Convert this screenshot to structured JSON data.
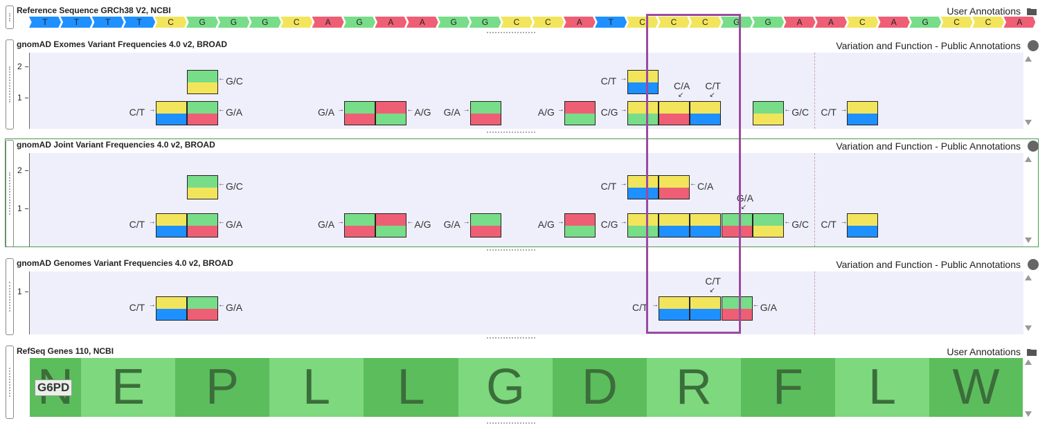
{
  "reference": {
    "title": "Reference Sequence GRCh38 V2, NCBI",
    "right_label": "User Annotations",
    "sequence": [
      "T",
      "T",
      "T",
      "T",
      "C",
      "G",
      "G",
      "G",
      "C",
      "A",
      "G",
      "A",
      "A",
      "G",
      "G",
      "C",
      "C",
      "A",
      "T",
      "C",
      "C",
      "C",
      "G",
      "G",
      "A",
      "A",
      "C",
      "A",
      "G",
      "C",
      "C",
      "A"
    ],
    "colors": {
      "T": "#1e90ff",
      "C": "#f2e55c",
      "G": "#77dd88",
      "A": "#ee5f75"
    }
  },
  "tracks": [
    {
      "title": "gnomAD Exomes Variant Frequencies 4.0 v2, BROAD",
      "right_label": "Variation and Function - Public Annotations",
      "yticks": [
        "2",
        "1"
      ],
      "variants": [
        {
          "col": 4,
          "row": 1,
          "top": "C",
          "bot": "T",
          "label": "C/T",
          "side": "left"
        },
        {
          "col": 5,
          "row": 1,
          "top": "G",
          "bot": "A",
          "label": "G/A",
          "side": "right"
        },
        {
          "col": 5,
          "row": 2,
          "top": "G",
          "bot": "C",
          "label": "G/C",
          "side": "right"
        },
        {
          "col": 10,
          "row": 1,
          "top": "G",
          "bot": "A",
          "label": "G/A",
          "side": "left"
        },
        {
          "col": 11,
          "row": 1,
          "top": "A",
          "bot": "G",
          "label": "A/G",
          "side": "right"
        },
        {
          "col": 14,
          "row": 1,
          "top": "G",
          "bot": "A",
          "label": "G/A",
          "side": "left"
        },
        {
          "col": 17,
          "row": 1,
          "top": "A",
          "bot": "G",
          "label": "A/G",
          "side": "left"
        },
        {
          "col": 19,
          "row": 1,
          "top": "C",
          "bot": "G",
          "label": "C/G",
          "side": "left"
        },
        {
          "col": 19,
          "row": 2,
          "top": "C",
          "bot": "T",
          "label": "C/T",
          "side": "left"
        },
        {
          "col": 20,
          "row": 1,
          "top": "C",
          "bot": "A",
          "label": "C/A",
          "side": "above"
        },
        {
          "col": 21,
          "row": 1,
          "top": "C",
          "bot": "T",
          "label": "C/T",
          "side": "above"
        },
        {
          "col": 23,
          "row": 1,
          "top": "G",
          "bot": "C",
          "label": "G/C",
          "side": "right"
        },
        {
          "col": 26,
          "row": 1,
          "top": "C",
          "bot": "T",
          "label": "C/T",
          "side": "left"
        }
      ]
    },
    {
      "title": "gnomAD Joint Variant Frequencies 4.0 v2, BROAD",
      "right_label": "Variation and Function - Public Annotations",
      "yticks": [
        "2",
        "1"
      ],
      "variants": [
        {
          "col": 4,
          "row": 1,
          "top": "C",
          "bot": "T",
          "label": "C/T",
          "side": "left"
        },
        {
          "col": 5,
          "row": 1,
          "top": "G",
          "bot": "A",
          "label": "G/A",
          "side": "right"
        },
        {
          "col": 5,
          "row": 2,
          "top": "G",
          "bot": "C",
          "label": "G/C",
          "side": "right"
        },
        {
          "col": 10,
          "row": 1,
          "top": "G",
          "bot": "A",
          "label": "G/A",
          "side": "left"
        },
        {
          "col": 11,
          "row": 1,
          "top": "A",
          "bot": "G",
          "label": "A/G",
          "side": "right"
        },
        {
          "col": 14,
          "row": 1,
          "top": "G",
          "bot": "A",
          "label": "G/A",
          "side": "left"
        },
        {
          "col": 17,
          "row": 1,
          "top": "A",
          "bot": "G",
          "label": "A/G",
          "side": "left"
        },
        {
          "col": 19,
          "row": 1,
          "top": "C",
          "bot": "G",
          "label": "C/G",
          "side": "left"
        },
        {
          "col": 19,
          "row": 2,
          "top": "C",
          "bot": "T",
          "label": "C/T",
          "side": "left"
        },
        {
          "col": 20,
          "row": 1,
          "top": "C",
          "bot": "T",
          "label": "",
          "side": "none"
        },
        {
          "col": 20,
          "row": 2,
          "top": "C",
          "bot": "A",
          "label": "C/A",
          "side": "right"
        },
        {
          "col": 21,
          "row": 1,
          "top": "C",
          "bot": "T",
          "label": "",
          "side": "none"
        },
        {
          "col": 22,
          "row": 1,
          "top": "G",
          "bot": "A",
          "label": "G/A",
          "side": "above"
        },
        {
          "col": 23,
          "row": 1,
          "top": "G",
          "bot": "C",
          "label": "G/C",
          "side": "right"
        },
        {
          "col": 26,
          "row": 1,
          "top": "C",
          "bot": "T",
          "label": "C/T",
          "side": "left"
        }
      ]
    },
    {
      "title": "gnomAD Genomes Variant Frequencies 4.0 v2, BROAD",
      "right_label": "Variation and Function - Public Annotations",
      "yticks": [
        "1"
      ],
      "variants": [
        {
          "col": 4,
          "row": 1,
          "top": "C",
          "bot": "T",
          "label": "C/T",
          "side": "left"
        },
        {
          "col": 5,
          "row": 1,
          "top": "G",
          "bot": "A",
          "label": "G/A",
          "side": "right"
        },
        {
          "col": 20,
          "row": 1,
          "top": "C",
          "bot": "T",
          "label": "C/T",
          "side": "left"
        },
        {
          "col": 21,
          "row": 1,
          "top": "C",
          "bot": "T",
          "label": "C/T",
          "side": "above"
        },
        {
          "col": 22,
          "row": 1,
          "top": "G",
          "bot": "A",
          "label": "G/A",
          "side": "right"
        }
      ]
    }
  ],
  "genes": {
    "title": "RefSeq Genes 110, NCBI",
    "right_label": "User Annotations",
    "gene_name": "G6PD",
    "amino_acids": [
      "N",
      "E",
      "P",
      "L",
      "L",
      "G",
      "D",
      "R",
      "F",
      "L",
      "W"
    ]
  }
}
